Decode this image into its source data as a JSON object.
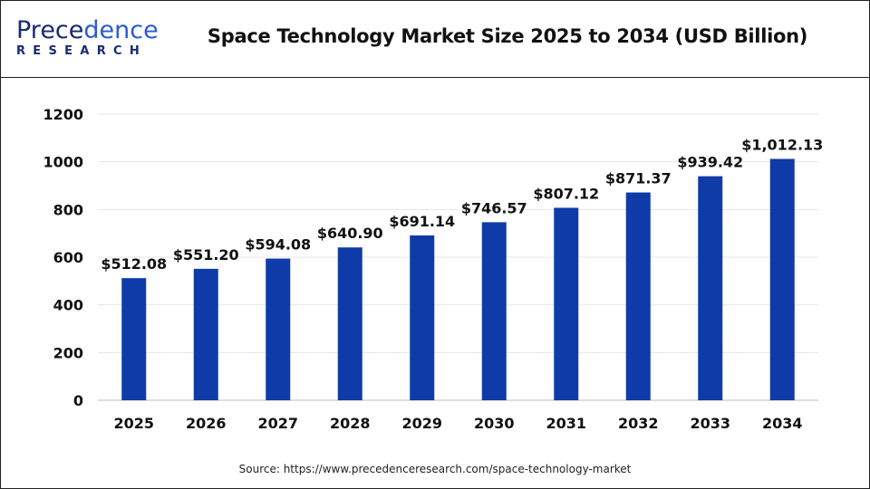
{
  "header": {
    "title": "Space Technology Market Size 2025 to 2034 (USD Billion)",
    "logo_text_top": "Precedence",
    "logo_text_bottom": "RESEARCH"
  },
  "source": "Source: https://www.precedenceresearch.com/space-technology-market",
  "colors": {
    "bar": "#0f3ba8",
    "grid": "#e6e6e6",
    "axis": "#bbbbbb"
  },
  "chart_data": {
    "type": "bar",
    "title": "Space Technology Market Size 2025 to 2034 (USD Billion)",
    "categories": [
      "2025",
      "2026",
      "2027",
      "2028",
      "2029",
      "2030",
      "2031",
      "2032",
      "2033",
      "2034"
    ],
    "values": [
      512.08,
      551.2,
      594.08,
      640.9,
      691.14,
      746.57,
      807.12,
      871.37,
      939.42,
      1012.13
    ],
    "data_labels": [
      "$512.08",
      "$551.20",
      "$594.08",
      "$640.90",
      "$691.14",
      "$746.57",
      "$807.12",
      "$871.37",
      "$939.42",
      "$1,012.13"
    ],
    "yticks": [
      0,
      200,
      400,
      600,
      800,
      1000,
      1200
    ],
    "ylim": [
      0,
      1200
    ],
    "grid": true,
    "legend": "none"
  }
}
